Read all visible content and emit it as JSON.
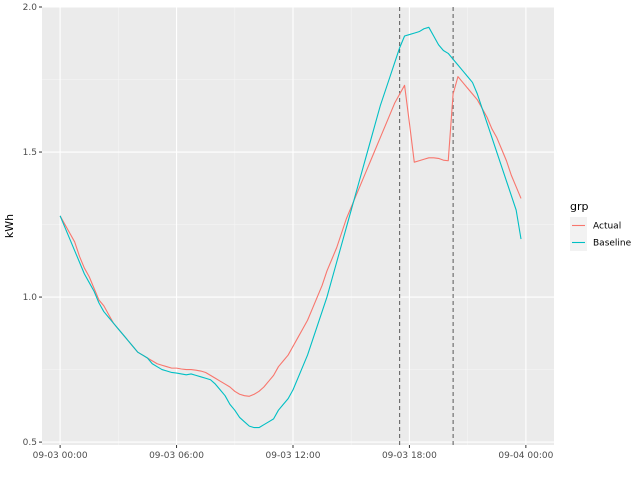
{
  "chart_data": {
    "type": "line",
    "xlabel": "",
    "ylabel": "kWh",
    "ylim": [
      0.49,
      2.0
    ],
    "yticks": [
      0.5,
      1.0,
      1.5,
      2.0
    ],
    "ytick_labels": [
      "0.5",
      "1.0",
      "1.5",
      "2.0"
    ],
    "xlim": [
      "2023-09-02T23:04",
      "2023-09-04T01:27"
    ],
    "xticks": [
      "2023-09-03T00:00",
      "2023-09-03T06:00",
      "2023-09-03T12:00",
      "2023-09-03T18:00",
      "2023-09-04T00:00"
    ],
    "xtick_labels": [
      "09-03 00:00",
      "09-03 06:00",
      "09-03 12:00",
      "09-03 18:00",
      "09-04 00:00"
    ],
    "vlines": [
      "2023-09-03T17:30",
      "2023-09-03T20:15"
    ],
    "grid": true,
    "legend": {
      "title": "grp",
      "position": "right"
    },
    "x": [
      "2023-09-03T00:00",
      "2023-09-03T00:15",
      "2023-09-03T00:30",
      "2023-09-03T00:45",
      "2023-09-03T01:00",
      "2023-09-03T01:15",
      "2023-09-03T01:30",
      "2023-09-03T01:45",
      "2023-09-03T02:00",
      "2023-09-03T02:15",
      "2023-09-03T02:30",
      "2023-09-03T02:45",
      "2023-09-03T03:00",
      "2023-09-03T03:15",
      "2023-09-03T03:30",
      "2023-09-03T03:45",
      "2023-09-03T04:00",
      "2023-09-03T04:15",
      "2023-09-03T04:30",
      "2023-09-03T04:45",
      "2023-09-03T05:00",
      "2023-09-03T05:15",
      "2023-09-03T05:30",
      "2023-09-03T05:45",
      "2023-09-03T06:00",
      "2023-09-03T06:15",
      "2023-09-03T06:30",
      "2023-09-03T06:45",
      "2023-09-03T07:00",
      "2023-09-03T07:15",
      "2023-09-03T07:30",
      "2023-09-03T07:45",
      "2023-09-03T08:00",
      "2023-09-03T08:15",
      "2023-09-03T08:30",
      "2023-09-03T08:45",
      "2023-09-03T09:00",
      "2023-09-03T09:15",
      "2023-09-03T09:30",
      "2023-09-03T09:45",
      "2023-09-03T10:00",
      "2023-09-03T10:15",
      "2023-09-03T10:30",
      "2023-09-03T10:45",
      "2023-09-03T11:00",
      "2023-09-03T11:15",
      "2023-09-03T11:30",
      "2023-09-03T11:45",
      "2023-09-03T12:00",
      "2023-09-03T12:15",
      "2023-09-03T12:30",
      "2023-09-03T12:45",
      "2023-09-03T13:00",
      "2023-09-03T13:15",
      "2023-09-03T13:30",
      "2023-09-03T13:45",
      "2023-09-03T14:00",
      "2023-09-03T14:15",
      "2023-09-03T14:30",
      "2023-09-03T14:45",
      "2023-09-03T15:00",
      "2023-09-03T15:15",
      "2023-09-03T15:30",
      "2023-09-03T15:45",
      "2023-09-03T16:00",
      "2023-09-03T16:15",
      "2023-09-03T16:30",
      "2023-09-03T16:45",
      "2023-09-03T17:00",
      "2023-09-03T17:15",
      "2023-09-03T17:30",
      "2023-09-03T17:45",
      "2023-09-03T18:00",
      "2023-09-03T18:15",
      "2023-09-03T18:30",
      "2023-09-03T18:45",
      "2023-09-03T19:00",
      "2023-09-03T19:15",
      "2023-09-03T19:30",
      "2023-09-03T19:45",
      "2023-09-03T20:00",
      "2023-09-03T20:15",
      "2023-09-03T20:30",
      "2023-09-03T20:45",
      "2023-09-03T21:00",
      "2023-09-03T21:15",
      "2023-09-03T21:30",
      "2023-09-03T21:45",
      "2023-09-03T22:00",
      "2023-09-03T22:15",
      "2023-09-03T22:30",
      "2023-09-03T22:45",
      "2023-09-03T23:00",
      "2023-09-03T23:15",
      "2023-09-03T23:30",
      "2023-09-03T23:45"
    ],
    "series": [
      {
        "name": "Actual",
        "color": "#F8766D",
        "values": [
          1.28,
          1.25,
          1.22,
          1.19,
          1.14,
          1.1,
          1.07,
          1.03,
          0.99,
          0.97,
          0.94,
          0.91,
          0.89,
          0.87,
          0.85,
          0.83,
          0.81,
          0.8,
          0.79,
          0.78,
          0.77,
          0.765,
          0.76,
          0.755,
          0.755,
          0.752,
          0.75,
          0.75,
          0.748,
          0.745,
          0.74,
          0.73,
          0.72,
          0.71,
          0.7,
          0.69,
          0.675,
          0.665,
          0.66,
          0.658,
          0.665,
          0.675,
          0.69,
          0.71,
          0.73,
          0.76,
          0.78,
          0.8,
          0.83,
          0.86,
          0.89,
          0.92,
          0.96,
          1.0,
          1.04,
          1.09,
          1.13,
          1.17,
          1.22,
          1.27,
          1.31,
          1.35,
          1.39,
          1.43,
          1.47,
          1.51,
          1.55,
          1.59,
          1.63,
          1.67,
          1.7,
          1.73,
          1.6,
          1.465,
          1.47,
          1.475,
          1.48,
          1.48,
          1.478,
          1.472,
          1.47,
          1.7,
          1.76,
          1.74,
          1.72,
          1.7,
          1.68,
          1.65,
          1.62,
          1.58,
          1.55,
          1.51,
          1.47,
          1.42,
          1.38,
          1.34
        ]
      },
      {
        "name": "Baseline",
        "color": "#00BFC4",
        "values": [
          1.28,
          1.24,
          1.2,
          1.16,
          1.12,
          1.08,
          1.05,
          1.02,
          0.98,
          0.95,
          0.93,
          0.91,
          0.89,
          0.87,
          0.85,
          0.83,
          0.81,
          0.8,
          0.79,
          0.77,
          0.76,
          0.75,
          0.745,
          0.74,
          0.738,
          0.735,
          0.732,
          0.735,
          0.73,
          0.725,
          0.72,
          0.715,
          0.7,
          0.68,
          0.66,
          0.63,
          0.61,
          0.585,
          0.57,
          0.555,
          0.55,
          0.55,
          0.56,
          0.57,
          0.58,
          0.61,
          0.63,
          0.65,
          0.68,
          0.72,
          0.76,
          0.8,
          0.85,
          0.9,
          0.95,
          1.0,
          1.06,
          1.12,
          1.18,
          1.24,
          1.3,
          1.36,
          1.42,
          1.48,
          1.54,
          1.6,
          1.66,
          1.71,
          1.76,
          1.81,
          1.86,
          1.9,
          1.905,
          1.91,
          1.915,
          1.925,
          1.93,
          1.9,
          1.87,
          1.85,
          1.84,
          1.82,
          1.8,
          1.78,
          1.76,
          1.74,
          1.7,
          1.65,
          1.6,
          1.55,
          1.5,
          1.45,
          1.4,
          1.35,
          1.3,
          1.2
        ]
      }
    ]
  }
}
